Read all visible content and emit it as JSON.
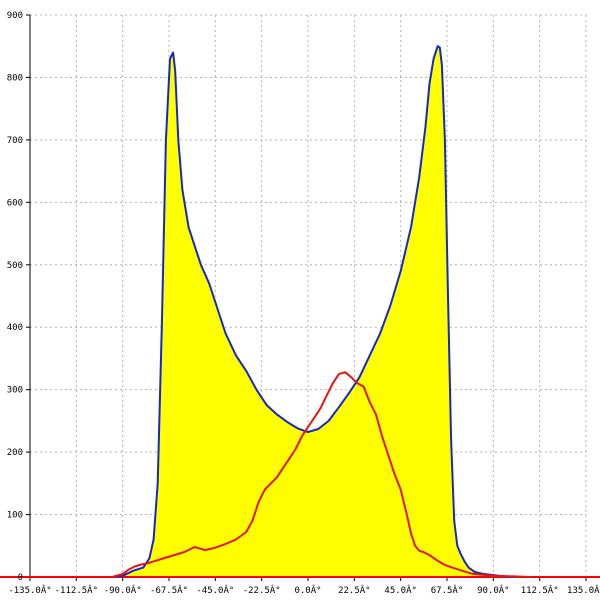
{
  "chart_data": {
    "type": "area",
    "title": "",
    "xlabel": "",
    "ylabel": "",
    "xlim": [
      -135,
      135
    ],
    "ylim": [
      0,
      900
    ],
    "grid": true,
    "x_ticks": [
      {
        "value": -135,
        "label": "-135.0Â°"
      },
      {
        "value": -112.5,
        "label": "-112.5Â°"
      },
      {
        "value": -90,
        "label": "-90.0Â°"
      },
      {
        "value": -67.5,
        "label": "-67.5Â°"
      },
      {
        "value": -45,
        "label": "-45.0Â°"
      },
      {
        "value": -22.5,
        "label": "-22.5Â°"
      },
      {
        "value": 0,
        "label": "0.0Â°"
      },
      {
        "value": 22.5,
        "label": "22.5Â°"
      },
      {
        "value": 45,
        "label": "45.0Â°"
      },
      {
        "value": 67.5,
        "label": "67.5Â°"
      },
      {
        "value": 90,
        "label": "90.0Â°"
      },
      {
        "value": 112.5,
        "label": "112.5Â°"
      },
      {
        "value": 135,
        "label": "135.0Â°"
      }
    ],
    "y_ticks": [
      {
        "value": 0,
        "label": "0"
      },
      {
        "value": 100,
        "label": "100"
      },
      {
        "value": 200,
        "label": "200"
      },
      {
        "value": 300,
        "label": "300"
      },
      {
        "value": 400,
        "label": "400"
      },
      {
        "value": 500,
        "label": "500"
      },
      {
        "value": 600,
        "label": "600"
      },
      {
        "value": 700,
        "label": "700"
      },
      {
        "value": 800,
        "label": "800"
      },
      {
        "value": 900,
        "label": "900"
      }
    ],
    "series": [
      {
        "color": "#1428c8",
        "fill": "#ffff00",
        "x": [
          -95,
          -90,
          -85,
          -80,
          -77,
          -75,
          -73,
          -71,
          -69,
          -67,
          -65.5,
          -64.5,
          -63,
          -61,
          -58,
          -55,
          -52,
          -48,
          -44,
          -40,
          -35,
          -30,
          -25,
          -20,
          -15,
          -10,
          -5,
          0,
          5,
          10,
          15,
          20,
          25,
          30,
          35,
          40,
          45,
          50,
          54,
          57,
          59,
          61,
          63,
          64,
          65,
          66.5,
          68,
          69.5,
          71,
          72.5,
          74,
          76,
          78,
          81,
          85,
          90,
          95,
          100
        ],
        "y": [
          0,
          2,
          10,
          15,
          30,
          60,
          150,
          400,
          700,
          830,
          840,
          810,
          700,
          620,
          560,
          530,
          500,
          470,
          430,
          390,
          355,
          330,
          300,
          275,
          260,
          248,
          238,
          232,
          237,
          250,
          272,
          295,
          320,
          355,
          390,
          435,
          490,
          560,
          640,
          720,
          790,
          830,
          850,
          848,
          820,
          700,
          450,
          220,
          90,
          50,
          38,
          25,
          15,
          8,
          5,
          3,
          1,
          0
        ]
      },
      {
        "color": "#e61414",
        "x": [
          -95,
          -90,
          -87,
          -84,
          -81,
          -78,
          -75,
          -72,
          -68,
          -64,
          -60,
          -55,
          -50,
          -45,
          -40,
          -35,
          -30,
          -27,
          -24,
          -21,
          -18,
          -15,
          -12,
          -9,
          -6,
          -3,
          0,
          3,
          6,
          9,
          12,
          15,
          18,
          21,
          24,
          27,
          30,
          33,
          36,
          39,
          42,
          45,
          48,
          50,
          52,
          54,
          56,
          59,
          62,
          66,
          70,
          75,
          80,
          90,
          100,
          108
        ],
        "y": [
          0,
          5,
          12,
          17,
          20,
          22,
          25,
          28,
          32,
          36,
          40,
          48,
          43,
          47,
          53,
          60,
          72,
          90,
          120,
          140,
          150,
          160,
          175,
          190,
          205,
          225,
          240,
          255,
          270,
          290,
          310,
          325,
          328,
          320,
          310,
          305,
          280,
          260,
          225,
          195,
          165,
          140,
          100,
          70,
          50,
          42,
          40,
          35,
          28,
          20,
          15,
          10,
          5,
          2,
          1,
          0
        ]
      }
    ],
    "baseline": {
      "value": 0,
      "color": "#ff0000"
    }
  }
}
